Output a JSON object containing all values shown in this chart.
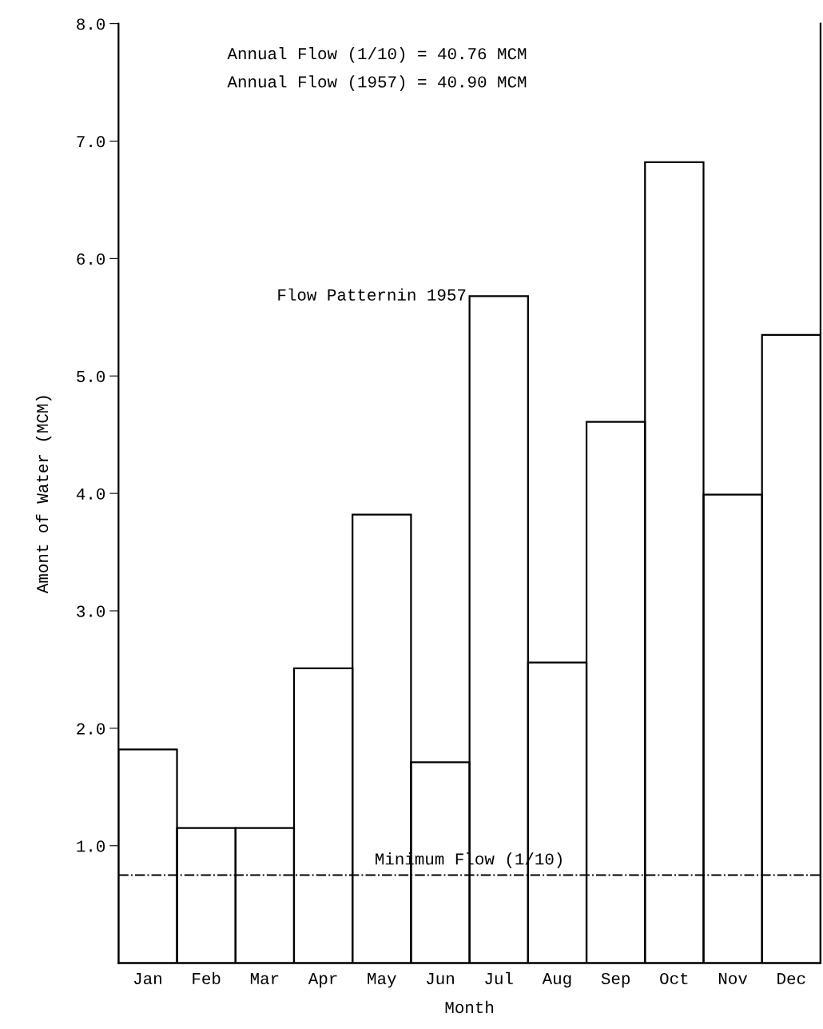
{
  "chart_data": {
    "type": "bar",
    "xlabel": "Month",
    "ylabel": "Amont of Water (MCM)",
    "categories": [
      "Jan",
      "Feb",
      "Mar",
      "Apr",
      "May",
      "Jun",
      "Jul",
      "Aug",
      "Sep",
      "Oct",
      "Nov",
      "Dec"
    ],
    "series": [
      {
        "color": "#000000",
        "values": [
          1.82,
          1.15,
          1.15,
          2.51,
          3.82,
          1.71,
          5.68,
          2.56,
          4.61,
          6.82,
          3.99,
          5.35
        ]
      }
    ],
    "ylim": [
      0,
      8
    ],
    "yticks": [
      {
        "value": 1,
        "label": "1.0"
      },
      {
        "value": 2,
        "label": "2.0"
      },
      {
        "value": 3,
        "label": "3.0"
      },
      {
        "value": 4,
        "label": "4.0"
      },
      {
        "value": 5,
        "label": "5.0"
      },
      {
        "value": 6,
        "label": "6.0"
      },
      {
        "value": 7,
        "label": "7.0"
      },
      {
        "value": 8,
        "label": "8.0"
      }
    ],
    "ref_lines": [
      {
        "axis": "y",
        "value": 0.75,
        "label": "Minimum Flow (1/10)",
        "color": "#000000",
        "line_style": "dashdot"
      }
    ],
    "annotations": [
      "Annual Flow (1/10) = 40.76 MCM",
      "Annual Flow (1957) = 40.90 MCM",
      {
        "text": "Flow Patternin 1957",
        "x": "Jul",
        "y": 5.68
      }
    ],
    "grid": false,
    "legend": false
  }
}
